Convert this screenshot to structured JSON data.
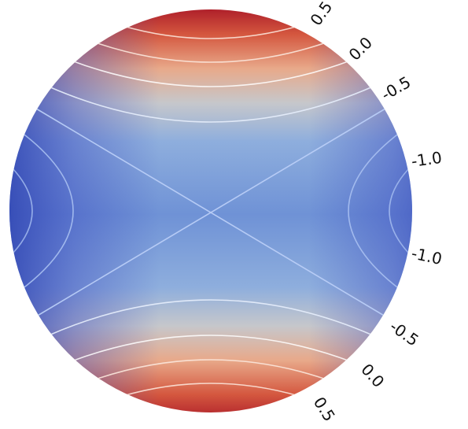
{
  "plot": {
    "colormap": [
      "#3b4cc0",
      "#6f92d6",
      "#dddcdc",
      "#e0785b",
      "#b40426"
    ],
    "contour_color": "#ffffff",
    "contour_labels": [
      {
        "id": "top-0-5",
        "text": "0.5"
      },
      {
        "id": "top-0-0",
        "text": "0.0"
      },
      {
        "id": "top-neg-0-5",
        "text": "-0.5"
      },
      {
        "id": "top-neg-1-0",
        "text": "-1.0"
      },
      {
        "id": "bottom-neg-1-0",
        "text": "-1.0"
      },
      {
        "id": "bottom-neg-0-5",
        "text": "-0.5"
      },
      {
        "id": "bottom-0-0",
        "text": "0.0"
      },
      {
        "id": "bottom-0-5",
        "text": "0.5"
      }
    ]
  }
}
